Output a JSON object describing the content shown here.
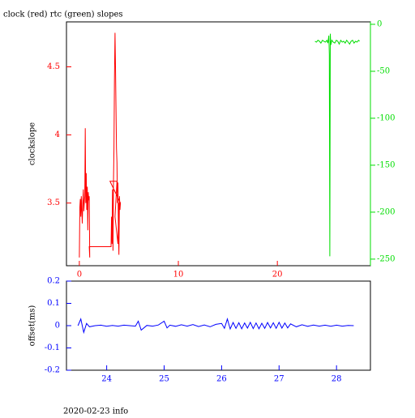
{
  "chart_data": [
    {
      "type": "line",
      "title": "clock (red) rtc (green) slopes",
      "ylabel": "clockslope",
      "xlim": [
        -1.3,
        29.4
      ],
      "xticks": [
        0,
        10,
        20
      ],
      "ylim": [
        3.04,
        4.83
      ],
      "yticks": [
        3.5,
        4,
        4.5
      ],
      "y2lim": [
        -257,
        2.6
      ],
      "y2ticks": [
        0,
        -50,
        -100,
        -150,
        -200,
        -250
      ],
      "series": [
        {
          "color": "#ff0000",
          "x": [
            0.0,
            0.05,
            0.1,
            0.15,
            0.2,
            0.25,
            0.3,
            0.35,
            0.4,
            0.45,
            0.5,
            0.55,
            0.6,
            0.65,
            0.7,
            0.75,
            0.8,
            0.85,
            0.9,
            0.95,
            1.0,
            1.05,
            1.0,
            3.2,
            3.25,
            3.3,
            3.35,
            3.4,
            3.45,
            3.5,
            3.55,
            3.6,
            3.65,
            3.7,
            3.75,
            3.8,
            3.85,
            3.9,
            3.95,
            4.0,
            4.05,
            4.1,
            4.15,
            3.1,
            3.8,
            3.6,
            3.9,
            4.0
          ],
          "values": [
            3.1,
            3.47,
            3.53,
            3.4,
            3.55,
            3.45,
            3.35,
            3.52,
            3.6,
            3.44,
            3.5,
            3.55,
            4.05,
            3.5,
            3.72,
            3.45,
            3.62,
            3.3,
            3.58,
            3.52,
            3.55,
            3.1,
            3.18,
            3.18,
            3.4,
            3.2,
            3.6,
            3.15,
            3.66,
            3.9,
            4.4,
            4.75,
            4.5,
            4.2,
            3.9,
            3.8,
            3.5,
            3.65,
            3.3,
            3.12,
            3.55,
            3.45,
            3.5,
            3.66,
            3.66,
            3.4,
            3.2,
            3.5
          ]
        },
        {
          "color": "#00dd00",
          "axis": "y2",
          "x": [
            23.8,
            23.95,
            24.1,
            24.25,
            24.4,
            24.55,
            24.7,
            24.85,
            25.0,
            25.1,
            25.2,
            25.25,
            25.3,
            25.35,
            25.4,
            25.5,
            25.65,
            25.8,
            25.95,
            26.1,
            26.25,
            26.4,
            26.55,
            26.7,
            26.85,
            27.0,
            27.15,
            27.3,
            27.45,
            27.6,
            27.75,
            27.9,
            28.05,
            28.2,
            28.3
          ],
          "values": [
            -18,
            -19,
            -17,
            -18,
            -20,
            -17,
            -18,
            -19,
            -17,
            -20,
            -12,
            -32,
            -247,
            -10,
            -22,
            -17,
            -19,
            -20,
            -17,
            -18,
            -21,
            -17,
            -19,
            -18,
            -20,
            -17,
            -19,
            -21,
            -18,
            -17,
            -20,
            -18,
            -19,
            -17,
            -18
          ]
        }
      ]
    },
    {
      "type": "line",
      "ylabel": "offset(ms)",
      "xlim": [
        23.3,
        28.59
      ],
      "xticks": [
        24,
        25,
        26,
        27,
        28
      ],
      "ylim": [
        -0.2,
        0.2
      ],
      "yticks": [
        0.2,
        0.1,
        0,
        -0.1,
        -0.2
      ],
      "series": [
        {
          "color": "#0000ff",
          "x": [
            23.5,
            23.55,
            23.6,
            23.65,
            23.7,
            23.8,
            23.9,
            24.0,
            24.1,
            24.2,
            24.3,
            24.4,
            24.5,
            24.55,
            24.6,
            24.7,
            24.8,
            24.9,
            25.0,
            25.05,
            25.1,
            25.2,
            25.3,
            25.4,
            25.5,
            25.6,
            25.7,
            25.8,
            25.9,
            26.0,
            26.05,
            26.1,
            26.15,
            26.2,
            26.25,
            26.3,
            26.35,
            26.4,
            26.45,
            26.5,
            26.55,
            26.6,
            26.65,
            26.7,
            26.75,
            26.8,
            26.85,
            26.9,
            26.95,
            27.0,
            27.05,
            27.1,
            27.15,
            27.2,
            27.3,
            27.4,
            27.5,
            27.6,
            27.7,
            27.8,
            27.9,
            28.0,
            28.1,
            28.2,
            28.3
          ],
          "values": [
            0,
            0.03,
            -0.03,
            0.01,
            -0.005,
            0,
            0.002,
            -0.003,
            0.001,
            -0.002,
            0.002,
            0,
            -0.002,
            0.02,
            -0.02,
            0.001,
            -0.002,
            0.003,
            0.02,
            -0.01,
            0.002,
            -0.003,
            0.004,
            -0.002,
            0.005,
            -0.004,
            0.003,
            -0.005,
            0.006,
            0.01,
            -0.012,
            0.03,
            -0.015,
            0.014,
            -0.012,
            0.013,
            -0.014,
            0.012,
            -0.011,
            0.015,
            -0.013,
            0.012,
            -0.014,
            0.011,
            -0.012,
            0.014,
            -0.01,
            0.013,
            -0.012,
            0.015,
            -0.011,
            0.012,
            -0.01,
            0.008,
            -0.005,
            0.004,
            -0.003,
            0.003,
            -0.002,
            0.002,
            -0.003,
            0.002,
            -0.002,
            0.001,
            0
          ]
        }
      ]
    }
  ],
  "footer": "2020-02-23 info"
}
